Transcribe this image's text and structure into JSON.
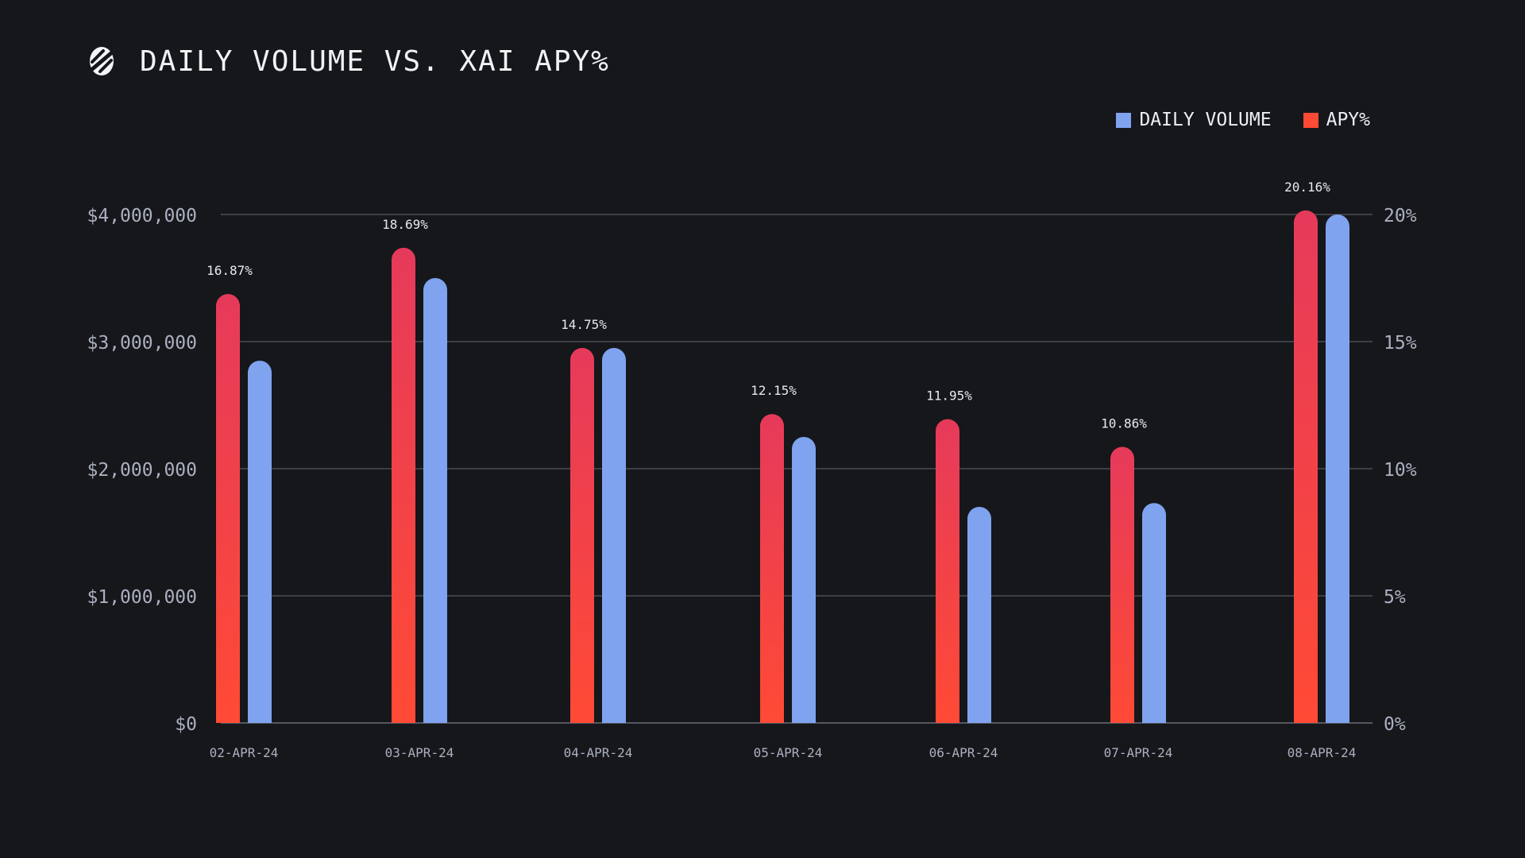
{
  "title": "DAILY VOLUME VS. XAI APY%",
  "logo_icon": "brand-s-logo-icon",
  "legend": {
    "volume_label": "DAILY VOLUME",
    "apy_label": "APY%"
  },
  "colors": {
    "background": "#16171b",
    "volume": "#7fa3ef",
    "apy_top": "#e63a5b",
    "apy_bottom": "#ff4a35",
    "grid": "#4a4c55",
    "axis_text": "#aab0c0"
  },
  "chart_data": {
    "type": "bar",
    "title": "DAILY VOLUME VS. XAI APY%",
    "categories": [
      "02-APR-24",
      "03-APR-24",
      "04-APR-24",
      "05-APR-24",
      "06-APR-24",
      "07-APR-24",
      "08-APR-24"
    ],
    "series": [
      {
        "name": "APY%",
        "axis": "right",
        "values": [
          16.87,
          18.69,
          14.75,
          12.15,
          11.95,
          10.86,
          20.16
        ],
        "labels": [
          "16.87%",
          "18.69%",
          "14.75%",
          "12.15%",
          "11.95%",
          "10.86%",
          "20.16%"
        ]
      },
      {
        "name": "DAILY VOLUME",
        "axis": "left",
        "values": [
          2850000,
          3500000,
          2950000,
          2250000,
          1700000,
          1730000,
          4000000
        ]
      }
    ],
    "left_axis": {
      "ylim": [
        0,
        4000000
      ],
      "ticks": [
        0,
        1000000,
        2000000,
        3000000,
        4000000
      ],
      "tick_labels": [
        "$0",
        "$1,000,000",
        "$2,000,000",
        "$3,000,000",
        "$4,000,000"
      ]
    },
    "right_axis": {
      "ylim": [
        0,
        20
      ],
      "ticks": [
        0,
        5,
        10,
        15,
        20
      ],
      "tick_labels": [
        "0%",
        "5%",
        "10%",
        "15%",
        "20%"
      ]
    },
    "legend_position": "top-right",
    "grid": true
  }
}
